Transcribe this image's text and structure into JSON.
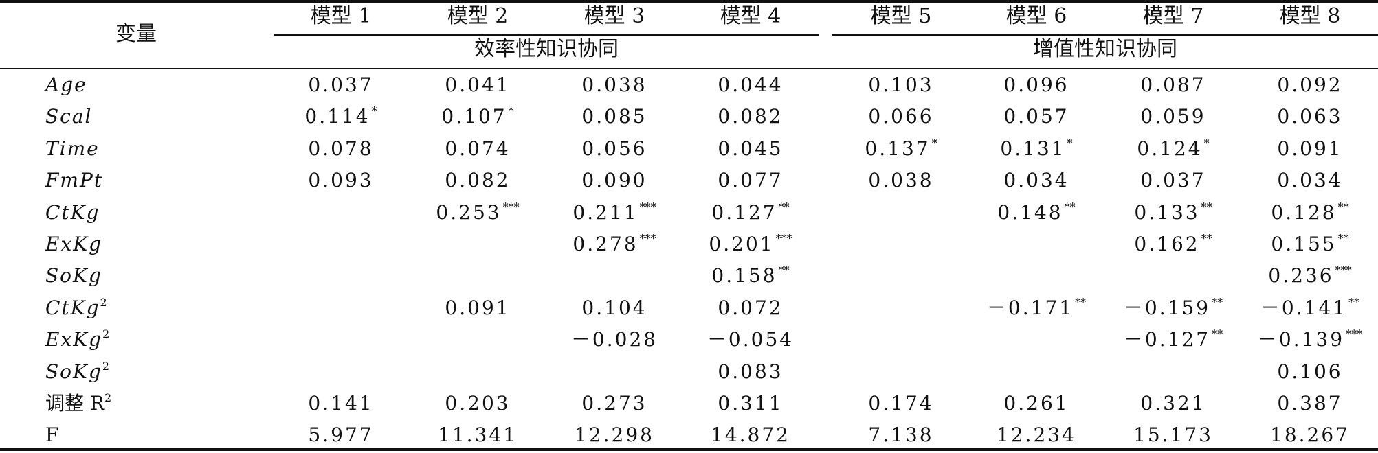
{
  "header": {
    "variable_label": "变量",
    "models": [
      "模型 1",
      "模型 2",
      "模型 3",
      "模型 4",
      "模型 5",
      "模型 6",
      "模型 7",
      "模型 8"
    ],
    "groups": [
      "效率性知识协同",
      "增值性知识协同"
    ]
  },
  "rows": [
    {
      "var": "Age",
      "sup": "",
      "cells": [
        [
          "0.037",
          ""
        ],
        [
          "0.041",
          ""
        ],
        [
          "0.038",
          ""
        ],
        [
          "0.044",
          ""
        ],
        [
          "0.103",
          ""
        ],
        [
          "0.096",
          ""
        ],
        [
          "0.087",
          ""
        ],
        [
          "0.092",
          ""
        ]
      ]
    },
    {
      "var": "Scal",
      "sup": "",
      "cells": [
        [
          "0.114",
          "*"
        ],
        [
          "0.107",
          "*"
        ],
        [
          "0.085",
          ""
        ],
        [
          "0.082",
          ""
        ],
        [
          "0.066",
          ""
        ],
        [
          "0.057",
          ""
        ],
        [
          "0.059",
          ""
        ],
        [
          "0.063",
          ""
        ]
      ]
    },
    {
      "var": "Time",
      "sup": "",
      "cells": [
        [
          "0.078",
          ""
        ],
        [
          "0.074",
          ""
        ],
        [
          "0.056",
          ""
        ],
        [
          "0.045",
          ""
        ],
        [
          "0.137",
          "*"
        ],
        [
          "0.131",
          "*"
        ],
        [
          "0.124",
          "*"
        ],
        [
          "0.091",
          ""
        ]
      ]
    },
    {
      "var": "FmPt",
      "sup": "",
      "cells": [
        [
          "0.093",
          ""
        ],
        [
          "0.082",
          ""
        ],
        [
          "0.090",
          ""
        ],
        [
          "0.077",
          ""
        ],
        [
          "0.038",
          ""
        ],
        [
          "0.034",
          ""
        ],
        [
          "0.037",
          ""
        ],
        [
          "0.034",
          ""
        ]
      ]
    },
    {
      "var": "CtKg",
      "sup": "",
      "cells": [
        [
          "",
          ""
        ],
        [
          "0.253",
          "***"
        ],
        [
          "0.211",
          "***"
        ],
        [
          "0.127",
          "**"
        ],
        [
          "",
          ""
        ],
        [
          "0.148",
          "**"
        ],
        [
          "0.133",
          "**"
        ],
        [
          "0.128",
          "**"
        ]
      ]
    },
    {
      "var": "ExKg",
      "sup": "",
      "cells": [
        [
          "",
          ""
        ],
        [
          "",
          ""
        ],
        [
          "0.278",
          "***"
        ],
        [
          "0.201",
          "***"
        ],
        [
          "",
          ""
        ],
        [
          "",
          ""
        ],
        [
          "0.162",
          "**"
        ],
        [
          "0.155",
          "**"
        ]
      ]
    },
    {
      "var": "SoKg",
      "sup": "",
      "cells": [
        [
          "",
          ""
        ],
        [
          "",
          ""
        ],
        [
          "",
          ""
        ],
        [
          "0.158",
          "**"
        ],
        [
          "",
          ""
        ],
        [
          "",
          ""
        ],
        [
          "",
          ""
        ],
        [
          "0.236",
          "***"
        ]
      ]
    },
    {
      "var": "CtKg",
      "sup": "2",
      "cells": [
        [
          "",
          ""
        ],
        [
          "0.091",
          ""
        ],
        [
          "0.104",
          ""
        ],
        [
          "0.072",
          ""
        ],
        [
          "",
          ""
        ],
        [
          "－0.171",
          "**"
        ],
        [
          "－0.159",
          "**"
        ],
        [
          "－0.141",
          "**"
        ]
      ]
    },
    {
      "var": "ExKg",
      "sup": "2",
      "cells": [
        [
          "",
          ""
        ],
        [
          "",
          ""
        ],
        [
          "－0.028",
          ""
        ],
        [
          "－0.054",
          ""
        ],
        [
          "",
          ""
        ],
        [
          "",
          ""
        ],
        [
          "－0.127",
          "**"
        ],
        [
          "－0.139",
          "***"
        ]
      ]
    },
    {
      "var": "SoKg",
      "sup": "2",
      "cells": [
        [
          "",
          ""
        ],
        [
          "",
          ""
        ],
        [
          "",
          ""
        ],
        [
          "0.083",
          ""
        ],
        [
          "",
          ""
        ],
        [
          "",
          ""
        ],
        [
          "",
          ""
        ],
        [
          "0.106",
          ""
        ]
      ]
    },
    {
      "var": "调整 R",
      "sup": "2",
      "plain": true,
      "cells": [
        [
          "0.141",
          ""
        ],
        [
          "0.203",
          ""
        ],
        [
          "0.273",
          ""
        ],
        [
          "0.311",
          ""
        ],
        [
          "0.174",
          ""
        ],
        [
          "0.261",
          ""
        ],
        [
          "0.321",
          ""
        ],
        [
          "0.387",
          ""
        ]
      ]
    },
    {
      "var": "F",
      "sup": "",
      "plain": true,
      "cells": [
        [
          "5.977",
          ""
        ],
        [
          "11.341",
          ""
        ],
        [
          "12.298",
          ""
        ],
        [
          "14.872",
          ""
        ],
        [
          "7.138",
          ""
        ],
        [
          "12.234",
          ""
        ],
        [
          "15.173",
          ""
        ],
        [
          "18.267",
          ""
        ]
      ]
    }
  ]
}
